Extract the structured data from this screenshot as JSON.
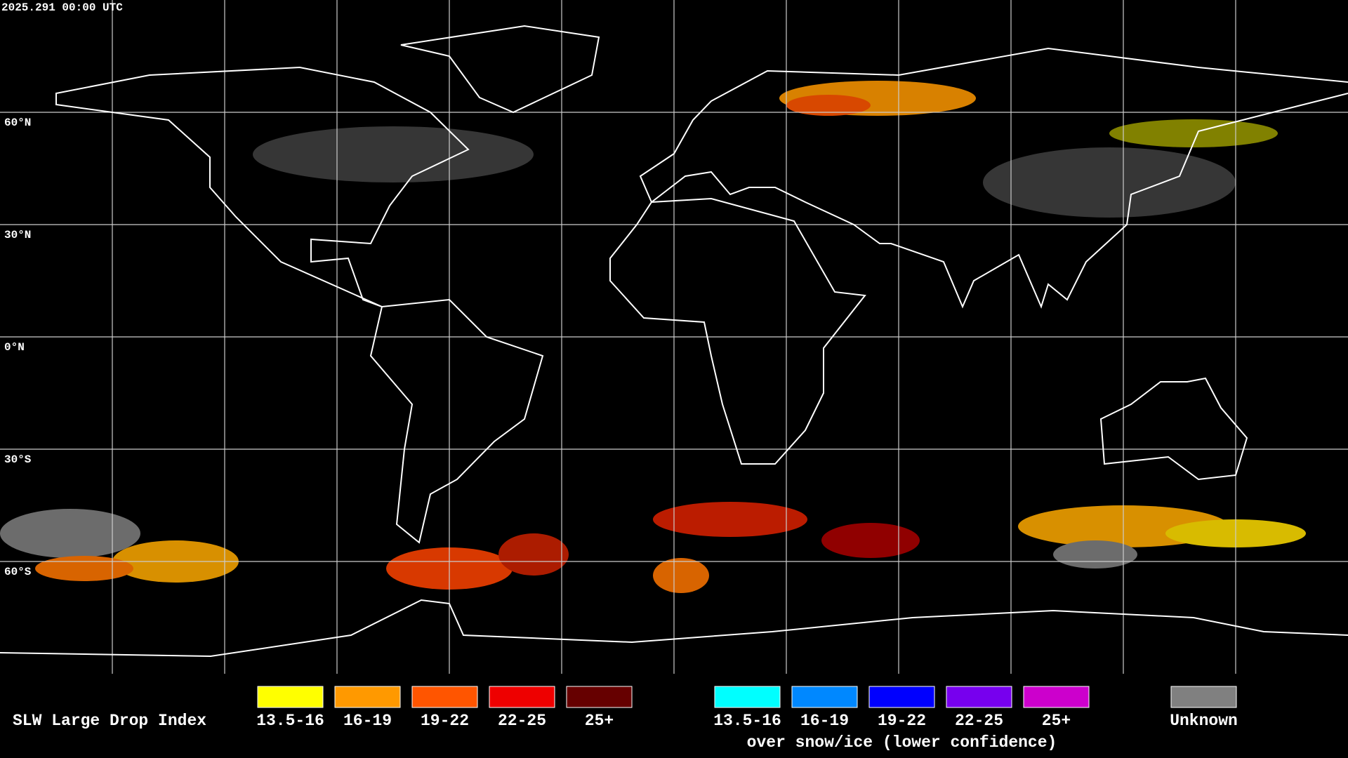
{
  "timestamp": "2025.291 00:00 UTC",
  "map": {
    "latitude_labels": [
      "60°N",
      "30°N",
      "0°N",
      "30°S",
      "60°S"
    ]
  },
  "legend": {
    "title": "SLW Large Drop Index",
    "groups": [
      {
        "items": [
          {
            "label": "13.5-16",
            "color": "#ffff00"
          },
          {
            "label": "16-19",
            "color": "#ff9900"
          },
          {
            "label": "19-22",
            "color": "#ff5500"
          },
          {
            "label": "22-25",
            "color": "#ee0000"
          },
          {
            "label": "25+",
            "color": "#660000"
          }
        ]
      },
      {
        "items": [
          {
            "label": "13.5-16",
            "color": "#00ffff"
          },
          {
            "label": "16-19",
            "color": "#0088ff"
          },
          {
            "label": "19-22",
            "color": "#0000ff"
          },
          {
            "label": "22-25",
            "color": "#7700ee"
          },
          {
            "label": "25+",
            "color": "#cc00cc"
          }
        ],
        "caption": "over snow/ice (lower confidence)"
      },
      {
        "items": [
          {
            "label": "Unknown",
            "color": "#808080"
          }
        ]
      }
    ]
  }
}
